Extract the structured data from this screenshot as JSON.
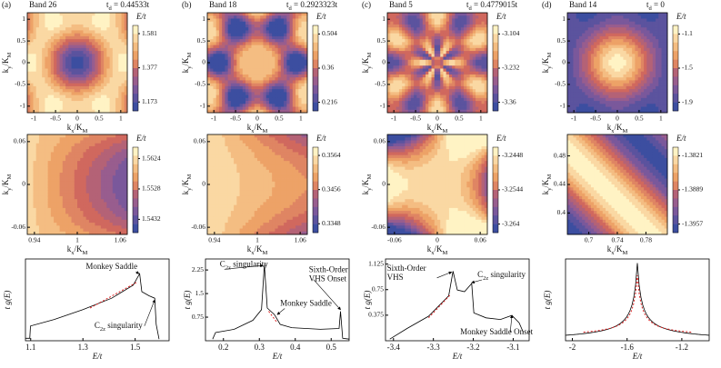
{
  "k_x": [
    "k",
    "x",
    "/K",
    "M"
  ],
  "k_y": [
    "k",
    "y",
    "/K",
    "M"
  ],
  "energy": "E/t",
  "dos": "t g(E)",
  "columns": [
    {
      "label": "(a)",
      "band": "Band 26",
      "td": [
        "t",
        "d",
        " = 0.44533t"
      ],
      "top": {
        "xlim": [
          -1.15,
          1.15
        ],
        "ylim": [
          -1.15,
          1.15
        ],
        "xticks": [
          -1,
          -0.5,
          0,
          0.5,
          1
        ],
        "yticks": [
          -1,
          -0.5,
          0,
          0.5,
          1
        ],
        "cbar_lim": [
          1.12,
          1.63
        ],
        "cbar_ticks": [
          1.581,
          1.377,
          1.173
        ]
      },
      "mid": {
        "xlim": [
          0.93,
          1.07
        ],
        "ylim": [
          -0.07,
          0.07
        ],
        "xticks": [
          0.94,
          1,
          1.06
        ],
        "yticks": [
          -0.06,
          0,
          0.06
        ],
        "cbar_lim": [
          1.539,
          1.566
        ],
        "cbar_ticks": [
          1.5624,
          1.5528,
          1.5432
        ]
      },
      "bottom": {
        "xlim": [
          1.08,
          1.63
        ],
        "xticks": [
          1.1,
          1.3,
          1.5
        ],
        "notes": [
          {
            "lines": [
              [
                "Monkey Saddle"
              ]
            ]
          },
          {
            "lines": [
              [
                "C",
                "2z",
                " singularity"
              ]
            ]
          }
        ]
      }
    },
    {
      "label": "(b)",
      "band": "Band 18",
      "td": [
        "t",
        "d",
        " = 0.2923323t"
      ],
      "top": {
        "xlim": [
          -1.15,
          1.15
        ],
        "ylim": [
          -1.15,
          1.15
        ],
        "xticks": [
          -1,
          -0.5,
          0,
          0.5,
          1
        ],
        "yticks": [
          -1,
          -0.5,
          0,
          0.5,
          1
        ],
        "cbar_lim": [
          0.18,
          0.54
        ],
        "cbar_ticks": [
          0.504,
          0.36,
          0.216
        ]
      },
      "mid": {
        "xlim": [
          0.93,
          1.07
        ],
        "ylim": [
          -0.07,
          0.07
        ],
        "xticks": [
          0.94,
          1,
          1.06
        ],
        "yticks": [
          -0.06,
          0,
          0.06
        ],
        "cbar_lim": [
          0.332,
          0.359
        ],
        "cbar_ticks": [
          0.3564,
          0.3456,
          0.3348
        ]
      },
      "bottom": {
        "xlim": [
          0.15,
          0.55
        ],
        "xticks": [
          0.2,
          0.3,
          0.4,
          0.5
        ],
        "ylim": [
          0,
          2.6
        ],
        "yticks": [
          0.75,
          1.5,
          2.25
        ],
        "notes": [
          {
            "lines": [
              [
                "C",
                "2z",
                " singularity"
              ]
            ]
          },
          {
            "lines": [
              [
                "Sixth-Order"
              ],
              [
                "VHS Onset"
              ]
            ]
          },
          {
            "lines": [
              [
                "Monkey Saddle"
              ]
            ]
          }
        ]
      }
    },
    {
      "label": "(c)",
      "band": "Band 5",
      "td": [
        "t",
        "d",
        " = 0.4779015t"
      ],
      "top": {
        "xlim": [
          -1.15,
          1.15
        ],
        "ylim": [
          -1.15,
          1.15
        ],
        "xticks": [
          -1,
          -0.5,
          0,
          0.5,
          1
        ],
        "yticks": [
          -1,
          -0.5,
          0,
          0.5,
          1
        ],
        "cbar_lim": [
          -3.392,
          -3.072
        ],
        "cbar_ticks": [
          -3.104,
          -3.232,
          -3.36
        ]
      },
      "mid": {
        "xlim": [
          -0.07,
          0.07
        ],
        "ylim": [
          -0.07,
          0.07
        ],
        "xticks": [
          -0.06,
          0,
          0.06
        ],
        "yticks": [
          -0.06,
          0,
          0.06
        ],
        "cbar_lim": [
          -3.2664,
          -3.2424
        ],
        "cbar_ticks": [
          -3.2448,
          -3.2544,
          -3.264
        ]
      },
      "bottom": {
        "xlim": [
          -3.42,
          -3.06
        ],
        "xticks": [
          -3.4,
          -3.3,
          -3.2,
          -3.1
        ],
        "ylim": [
          0,
          1.2
        ],
        "yticks": [
          0.375,
          0.75,
          1.125
        ],
        "notes": [
          {
            "lines": [
              [
                "Sixth-Order"
              ],
              [
                "VHS"
              ]
            ]
          },
          {
            "lines": [
              [
                "C",
                "2z",
                " singularity"
              ]
            ]
          },
          {
            "lines": [
              [
                "Monkey Saddle Onset"
              ]
            ]
          }
        ]
      }
    },
    {
      "label": "(d)",
      "band": "Band 14",
      "td": [
        "t",
        "d",
        " = 0"
      ],
      "top": {
        "xlim": [
          -1.15,
          1.15
        ],
        "ylim": [
          -1.15,
          1.15
        ],
        "xticks": [
          -1,
          -0.5,
          0,
          0.5,
          1
        ],
        "yticks": [
          -1,
          -0.5,
          0,
          0.5,
          1
        ],
        "cbar_lim": [
          -2,
          -1
        ],
        "cbar_ticks": [
          -1.1,
          -1.5,
          -1.9
        ]
      },
      "mid": {
        "xlim": [
          0.67,
          0.81
        ],
        "ylim": [
          0.37,
          0.51
        ],
        "xticks": [
          0.7,
          0.74,
          0.78
        ],
        "yticks": [
          0.4,
          0.44,
          0.48
        ],
        "cbar_lim": [
          -1.3974,
          -1.3804
        ],
        "cbar_ticks": [
          -1.3821,
          -1.3889,
          -1.3957
        ]
      },
      "bottom": {
        "xlim": [
          -2.05,
          -1.0
        ],
        "xticks": [
          -2,
          -1.6,
          -1.2
        ],
        "notes": []
      }
    }
  ]
}
